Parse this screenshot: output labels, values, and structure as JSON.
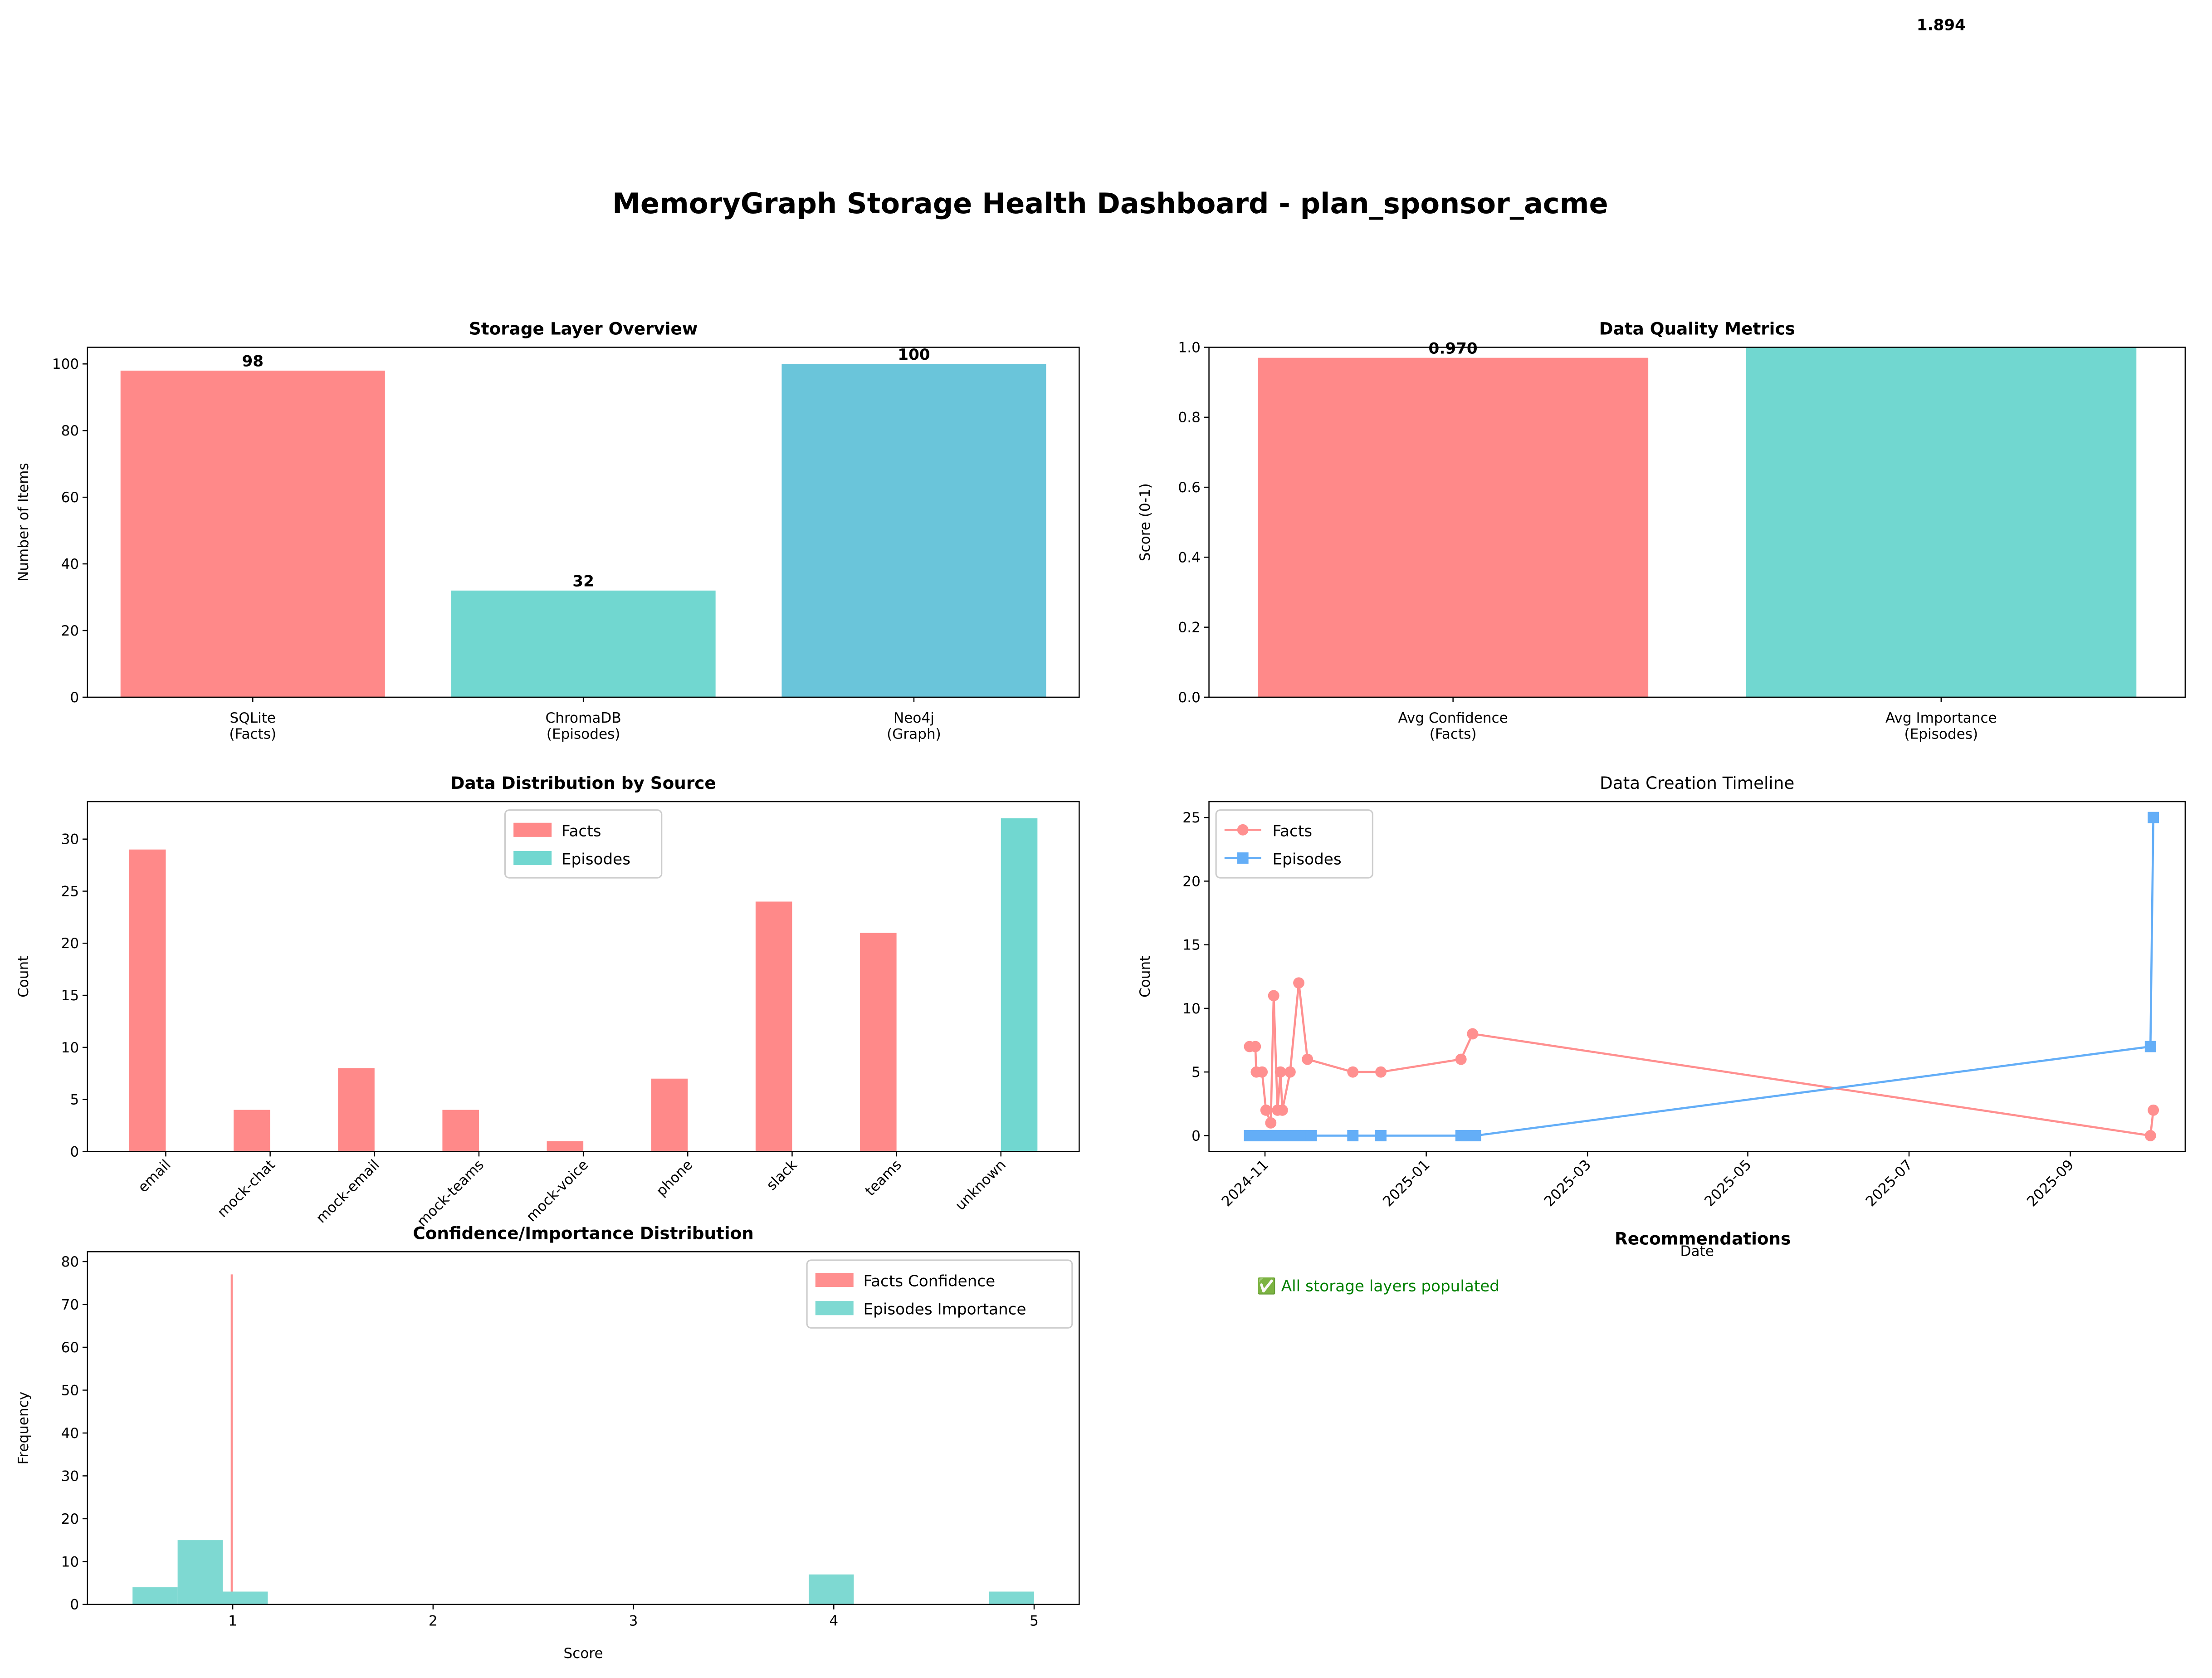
{
  "title": "MemoryGraph Storage Health Dashboard - plan_sponsor_acme",
  "chart_data": [
    {
      "type": "bar",
      "title": "Storage Layer Overview",
      "ylabel": "Number of Items",
      "categories": [
        "SQLite\n(Facts)",
        "ChromaDB\n(Episodes)",
        "Neo4j\n(Graph)"
      ],
      "values": [
        98,
        32,
        100
      ],
      "colors": [
        "#ff8989",
        "#71d7d0",
        "#6ac5da"
      ],
      "data_labels": true,
      "ylim": [
        0,
        105
      ],
      "yticks": [
        0,
        20,
        40,
        60,
        80,
        100
      ],
      "grid": false
    },
    {
      "type": "bar",
      "title": "Data Quality Metrics",
      "ylabel": "Score (0-1)",
      "categories": [
        "Avg Confidence\n(Facts)",
        "Avg Importance\n(Episodes)"
      ],
      "values": [
        0.97,
        1.894
      ],
      "value_labels": [
        "0.970",
        "1.894"
      ],
      "colors": [
        "#ff8989",
        "#71d7d0"
      ],
      "data_labels": true,
      "ylim": [
        0,
        1
      ],
      "yticks": [
        {
          "value": 0,
          "label": "0.0"
        },
        0.2,
        0.4,
        0.6,
        0.8,
        {
          "value": 1,
          "label": "1.0"
        }
      ],
      "grid": false
    },
    {
      "type": "bar",
      "title": "Data Distribution by Source",
      "ylabel": "Count",
      "categories": [
        "email",
        "mock-chat",
        "mock-email",
        "mock-teams",
        "mock-voice",
        "phone",
        "slack",
        "teams",
        "unknown"
      ],
      "series": [
        {
          "name": "Facts",
          "color": "#ff8989",
          "values": [
            29,
            4,
            8,
            4,
            1,
            7,
            24,
            21,
            0
          ]
        },
        {
          "name": "Episodes",
          "color": "#71d7d0",
          "values": [
            0,
            0,
            0,
            0,
            0,
            0,
            0,
            0,
            32
          ]
        }
      ],
      "xtick_rotation": 45,
      "legend": "upper center",
      "ylim": [
        0,
        33.6
      ],
      "yticks": [
        0,
        5,
        10,
        15,
        20,
        25,
        30
      ],
      "grid": false
    },
    {
      "type": "line",
      "title": "Data Creation Timeline",
      "xlabel": "Date",
      "ylabel": "Count",
      "series": [
        {
          "name": "Facts",
          "color": "#ff9090",
          "marker": "o",
          "x": [
            2024.817,
            2024.823,
            2024.824,
            2024.83,
            2024.834,
            2024.839,
            2024.842,
            2024.846,
            2024.849,
            2024.851,
            2024.859,
            2024.868,
            2024.877,
            2024.924,
            2024.953,
            2025.036,
            2025.048,
            2025.75,
            2025.753
          ],
          "values": [
            7,
            7,
            5,
            5,
            2,
            1,
            11,
            2,
            5,
            2,
            5,
            12,
            6,
            5,
            5,
            6,
            8,
            0,
            2
          ]
        },
        {
          "name": "Episodes",
          "color": "#64aef7",
          "marker": "s",
          "x": [
            2024.817,
            2024.823,
            2024.829,
            2024.834,
            2024.84,
            2024.846,
            2024.852,
            2024.858,
            2024.864,
            2024.87,
            2024.875,
            2024.881,
            2024.924,
            2024.953,
            2025.036,
            2025.042,
            2025.051,
            2025.75,
            2025.753
          ],
          "values": [
            0,
            0,
            0,
            0,
            0,
            0,
            0,
            0,
            0,
            0,
            0,
            0,
            0,
            0,
            0,
            0,
            0,
            7,
            25
          ]
        }
      ],
      "xtick_rotation": 45,
      "legend": "upper left",
      "xlim": [
        2024.775,
        2025.786
      ],
      "xticks": [
        {
          "value": 2024.833,
          "label": "2024-11"
        },
        {
          "value": 2025.0,
          "label": "2025-01"
        },
        {
          "value": 2025.167,
          "label": "2025-03"
        },
        {
          "value": 2025.333,
          "label": "2025-05"
        },
        {
          "value": 2025.5,
          "label": "2025-07"
        },
        {
          "value": 2025.667,
          "label": "2025-09"
        }
      ],
      "ylim": [
        -1.25,
        26.25
      ],
      "yticks": [
        0,
        5,
        10,
        15,
        20,
        25
      ],
      "grid": false
    },
    {
      "type": "histogram",
      "title": "Confidence/Importance Distribution",
      "xlabel": "Score",
      "ylabel": "Frequency",
      "series": [
        {
          "name": "Facts Confidence",
          "color": "#ff8f8f",
          "bins": [
            0.8,
            0.81,
            0.82,
            0.83,
            0.84,
            0.85,
            0.86,
            0.87,
            0.88,
            0.89,
            0.9,
            0.91,
            0.92,
            0.93,
            0.94,
            0.95,
            0.96,
            0.97,
            0.98,
            0.99,
            1.0
          ],
          "values": [
            8,
            0,
            0,
            0,
            0,
            0,
            0,
            0,
            0,
            0,
            13,
            0,
            0,
            0,
            0,
            0,
            0,
            0,
            0,
            77
          ]
        },
        {
          "name": "Episodes Importance",
          "color": "#7ed9d2",
          "bins": [
            0.5,
            0.725,
            0.95,
            1.175,
            1.4,
            1.625,
            1.85,
            2.075,
            2.3,
            2.525,
            2.75,
            2.975,
            3.2,
            3.425,
            3.65,
            3.875,
            4.1,
            4.325,
            4.55,
            4.775,
            5.0
          ],
          "values": [
            4,
            15,
            3,
            0,
            0,
            0,
            0,
            0,
            0,
            0,
            0,
            0,
            0,
            0,
            0,
            7,
            0,
            0,
            0,
            3
          ]
        }
      ],
      "legend": "upper right",
      "xlim": [
        0.275,
        5.225
      ],
      "xticks": [
        1,
        2,
        3,
        4,
        5
      ],
      "ylim": [
        0,
        82.3
      ],
      "yticks": [
        0,
        10,
        20,
        30,
        40,
        50,
        60,
        70,
        80
      ],
      "grid": false
    }
  ],
  "recommendations": {
    "title": "Recommendations",
    "items": [
      "✅ All storage layers populated"
    ]
  }
}
